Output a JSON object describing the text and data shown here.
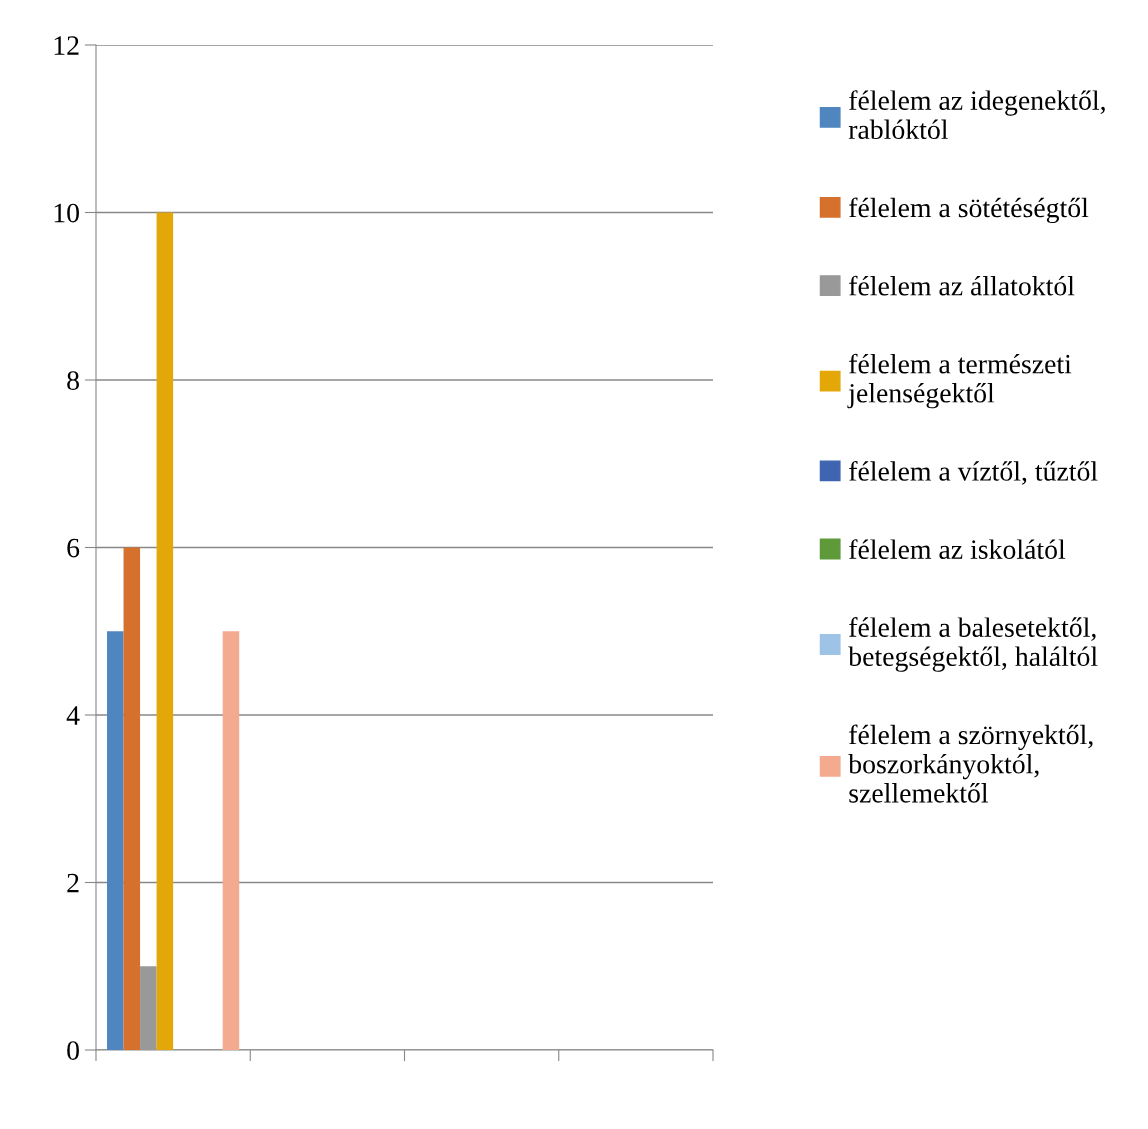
{
  "chart_data": {
    "type": "bar",
    "categories": [
      null,
      null,
      null,
      null
    ],
    "series": [
      {
        "name": "félelem az idegenektől, rablóktól",
        "color": "#4f86c0",
        "values": [
          5,
          null,
          null,
          null
        ]
      },
      {
        "name": "félelem a sötétéségtől",
        "color": "#d6702d",
        "values": [
          6,
          null,
          null,
          null
        ]
      },
      {
        "name": "félelem az állatoktól",
        "color": "#999999",
        "values": [
          1,
          null,
          null,
          null
        ]
      },
      {
        "name": "félelem a természeti jelenségektől",
        "color": "#e3a808",
        "values": [
          10,
          null,
          null,
          null
        ]
      },
      {
        "name": "félelem a víztől, tűztől",
        "color": "#3f64b0",
        "values": [
          0,
          null,
          null,
          null
        ]
      },
      {
        "name": "félelem az iskolától",
        "color": "#5e9a3a",
        "values": [
          0,
          null,
          null,
          null
        ]
      },
      {
        "name": "félelem a balesetektől, betegségektől, haláltól",
        "color": "#9dc3e6",
        "values": [
          0,
          null,
          null,
          null
        ]
      },
      {
        "name": "félelem a szörnyektől, boszorkányoktól, szellemektől",
        "color": "#f4aa8e",
        "values": [
          5,
          null,
          null,
          null
        ]
      }
    ],
    "ylim": [
      0,
      12
    ],
    "yticks": [
      0,
      2,
      4,
      6,
      8,
      10,
      12
    ],
    "grid": "y",
    "legend": "right",
    "tick_labels": "y"
  }
}
